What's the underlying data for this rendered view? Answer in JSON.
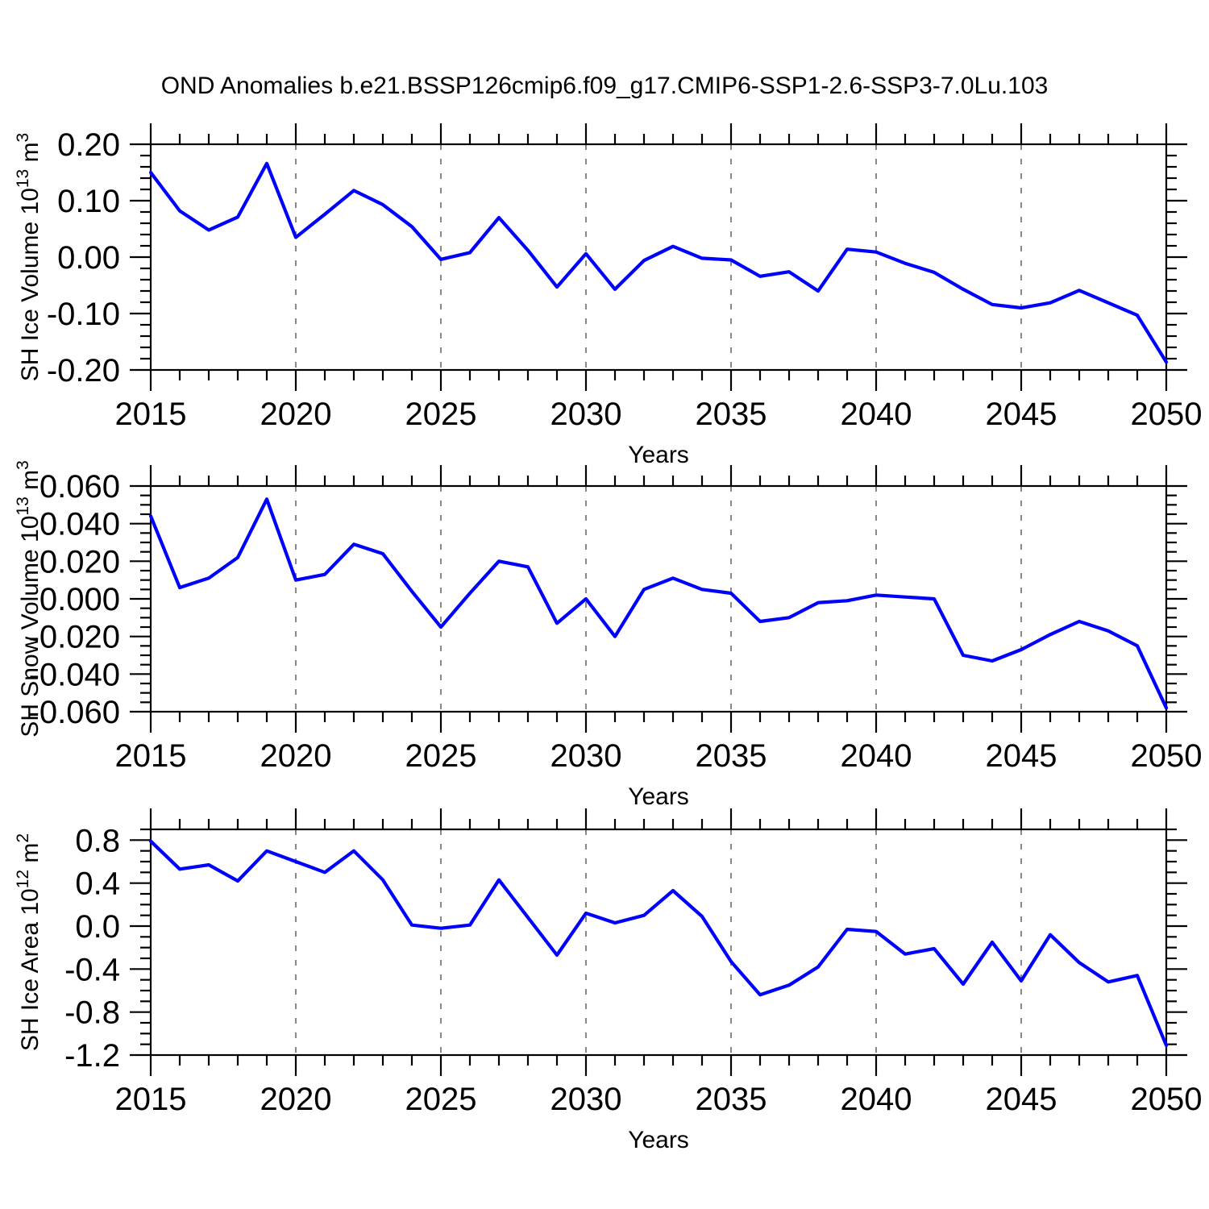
{
  "title": "OND Anomalies b.e21.BSSP126cmip6.f09_g17.CMIP6-SSP1-2.6-SSP3-7.0Lu.103",
  "line_color": "#0000ff",
  "grid_color": "#888888",
  "axis_color": "#000000",
  "chart_data": [
    {
      "type": "line",
      "name": "sh-ice-volume",
      "ylabel": "SH Ice Volume 10^13 m^3",
      "ylabel_parts": [
        [
          "SH Ice Volume 10",
          0
        ],
        [
          "13",
          1
        ],
        [
          " m",
          0
        ],
        [
          "3",
          1
        ]
      ],
      "xlabel": "Years",
      "xlim": [
        2015,
        2050
      ],
      "ylim": [
        -0.2,
        0.2
      ],
      "xticks_major": [
        2015,
        2020,
        2025,
        2030,
        2035,
        2040,
        2045,
        2050
      ],
      "xtick_minor_step": 1,
      "grid_years": [
        2020,
        2025,
        2030,
        2035,
        2040,
        2045
      ],
      "yticks": [
        {
          "value": 0.2,
          "label": "0.20"
        },
        {
          "value": 0.1,
          "label": "0.10"
        },
        {
          "value": 0.0,
          "label": "0.00"
        },
        {
          "value": -0.1,
          "label": "-0.10"
        },
        {
          "value": -0.2,
          "label": "-0.20"
        }
      ],
      "ytick_minor_step": 0.02,
      "x": [
        2015,
        2016,
        2017,
        2018,
        2019,
        2020,
        2021,
        2022,
        2023,
        2024,
        2025,
        2026,
        2027,
        2028,
        2029,
        2030,
        2031,
        2032,
        2033,
        2034,
        2035,
        2036,
        2037,
        2038,
        2039,
        2040,
        2041,
        2042,
        2043,
        2044,
        2045,
        2046,
        2047,
        2048,
        2049,
        2050
      ],
      "values": [
        0.15,
        0.082,
        0.048,
        0.071,
        0.166,
        0.035,
        0.076,
        0.118,
        0.093,
        0.054,
        -0.004,
        0.008,
        0.07,
        0.012,
        -0.053,
        0.006,
        -0.057,
        -0.006,
        0.019,
        -0.002,
        -0.005,
        -0.034,
        -0.026,
        -0.06,
        0.014,
        0.009,
        -0.011,
        -0.027,
        -0.057,
        -0.084,
        -0.09,
        -0.081,
        -0.059,
        -0.081,
        -0.103,
        -0.186
      ]
    },
    {
      "type": "line",
      "name": "sh-snow-volume",
      "ylabel": "SH Snow Volume 10^13 m^3",
      "ylabel_parts": [
        [
          "SH Snow Volume 10",
          0
        ],
        [
          "13",
          1
        ],
        [
          " m",
          0
        ],
        [
          "3",
          1
        ]
      ],
      "xlabel": "Years",
      "xlim": [
        2015,
        2050
      ],
      "ylim": [
        -0.06,
        0.06
      ],
      "xticks_major": [
        2015,
        2020,
        2025,
        2030,
        2035,
        2040,
        2045,
        2050
      ],
      "xtick_minor_step": 1,
      "grid_years": [
        2020,
        2025,
        2030,
        2035,
        2040,
        2045
      ],
      "yticks": [
        {
          "value": 0.06,
          "label": "0.060"
        },
        {
          "value": 0.04,
          "label": "0.040"
        },
        {
          "value": 0.02,
          "label": "0.020"
        },
        {
          "value": 0.0,
          "label": "0.000"
        },
        {
          "value": -0.02,
          "label": "-0.020"
        },
        {
          "value": -0.04,
          "label": "-0.040"
        },
        {
          "value": -0.06,
          "label": "-0.060"
        }
      ],
      "ytick_minor_step": 0.005,
      "x": [
        2015,
        2016,
        2017,
        2018,
        2019,
        2020,
        2021,
        2022,
        2023,
        2024,
        2025,
        2026,
        2027,
        2028,
        2029,
        2030,
        2031,
        2032,
        2033,
        2034,
        2035,
        2036,
        2037,
        2038,
        2039,
        2040,
        2041,
        2042,
        2043,
        2044,
        2045,
        2046,
        2047,
        2048,
        2049,
        2050
      ],
      "values": [
        0.044,
        0.006,
        0.011,
        0.022,
        0.053,
        0.01,
        0.013,
        0.029,
        0.024,
        0.004,
        -0.015,
        0.003,
        0.02,
        0.017,
        -0.013,
        0.0,
        -0.02,
        0.005,
        0.011,
        0.005,
        0.003,
        -0.012,
        -0.01,
        -0.002,
        -0.001,
        0.002,
        0.001,
        0.0,
        -0.03,
        -0.033,
        -0.027,
        -0.019,
        -0.012,
        -0.017,
        -0.025,
        -0.058
      ]
    },
    {
      "type": "line",
      "name": "sh-ice-area",
      "ylabel": "SH Ice Area 10^12 m^2",
      "ylabel_parts": [
        [
          "SH Ice Area 10",
          0
        ],
        [
          "12",
          1
        ],
        [
          " m",
          0
        ],
        [
          "2",
          1
        ]
      ],
      "xlabel": "Years",
      "xlim": [
        2015,
        2050
      ],
      "ylim": [
        -1.2,
        0.9
      ],
      "xticks_major": [
        2015,
        2020,
        2025,
        2030,
        2035,
        2040,
        2045,
        2050
      ],
      "xtick_minor_step": 1,
      "grid_years": [
        2020,
        2025,
        2030,
        2035,
        2040,
        2045
      ],
      "yticks": [
        {
          "value": 0.8,
          "label": "0.8"
        },
        {
          "value": 0.4,
          "label": "0.4"
        },
        {
          "value": 0.0,
          "label": "0.0"
        },
        {
          "value": -0.4,
          "label": "-0.4"
        },
        {
          "value": -0.8,
          "label": "-0.8"
        },
        {
          "value": -1.2,
          "label": "-1.2"
        }
      ],
      "ytick_minor_step": 0.1,
      "x": [
        2015,
        2016,
        2017,
        2018,
        2019,
        2020,
        2021,
        2022,
        2023,
        2024,
        2025,
        2026,
        2027,
        2028,
        2029,
        2030,
        2031,
        2032,
        2033,
        2034,
        2035,
        2036,
        2037,
        2038,
        2039,
        2040,
        2041,
        2042,
        2043,
        2044,
        2045,
        2046,
        2047,
        2048,
        2049,
        2050
      ],
      "values": [
        0.79,
        0.53,
        0.57,
        0.42,
        0.7,
        0.6,
        0.5,
        0.7,
        0.43,
        0.01,
        -0.02,
        0.01,
        0.43,
        0.08,
        -0.27,
        0.12,
        0.03,
        0.1,
        0.33,
        0.09,
        -0.33,
        -0.64,
        -0.55,
        -0.38,
        -0.03,
        -0.05,
        -0.26,
        -0.21,
        -0.54,
        -0.15,
        -0.51,
        -0.08,
        -0.34,
        -0.52,
        -0.46,
        -1.11
      ]
    }
  ]
}
